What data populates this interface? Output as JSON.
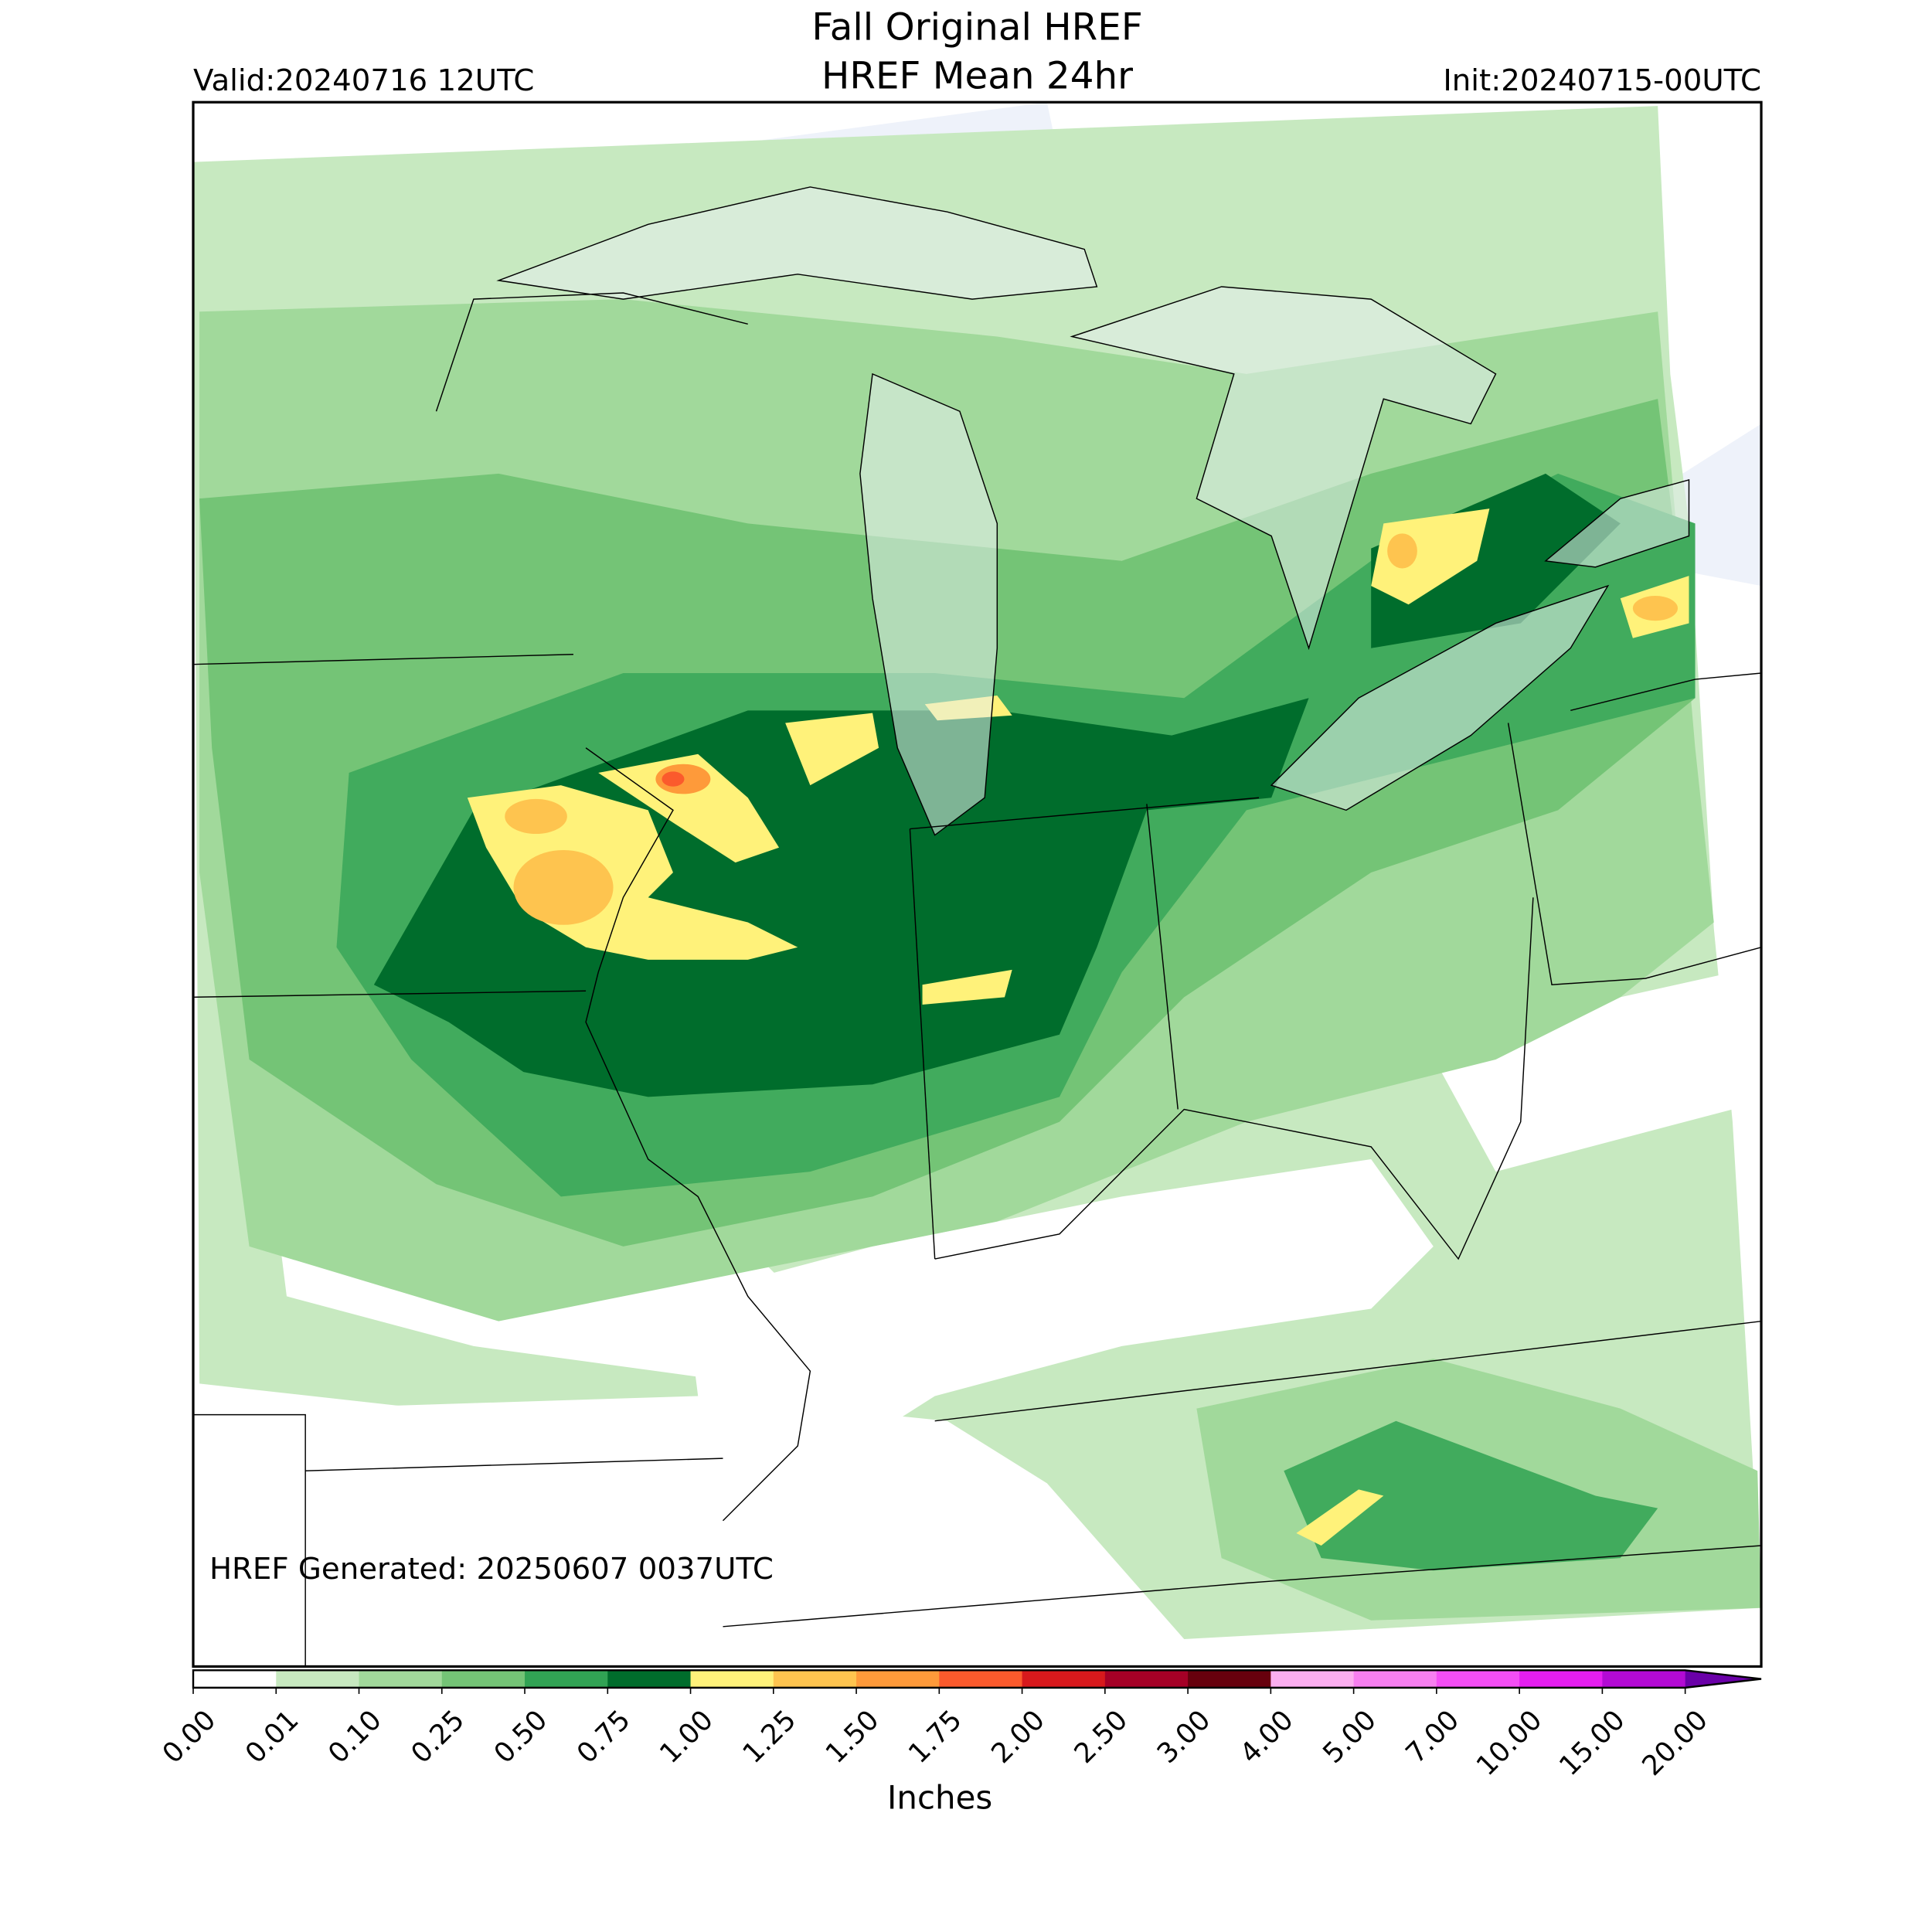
{
  "header": {
    "title": "Fall Original HREF",
    "subtitle": "HREF Mean 24hr",
    "valid": "Valid:20240716 12UTC",
    "init": "Init:20240715-00UTC"
  },
  "map": {
    "generated": "HREF Generated: 20250607 0037UTC"
  },
  "colorbar": {
    "label": "Inches",
    "ticks": [
      {
        "value": 0,
        "label": "0.00"
      },
      {
        "value": 0.01,
        "label": "0.01"
      },
      {
        "value": 0.1,
        "label": "0.10"
      },
      {
        "value": 0.25,
        "label": "0.25"
      },
      {
        "value": 0.5,
        "label": "0.50"
      },
      {
        "value": 0.75,
        "label": "0.75"
      },
      {
        "value": 1,
        "label": "1.00"
      },
      {
        "value": 1.25,
        "label": "1.25"
      },
      {
        "value": 1.5,
        "label": "1.50"
      },
      {
        "value": 1.75,
        "label": "1.75"
      },
      {
        "value": 2,
        "label": "2.00"
      },
      {
        "value": 2.5,
        "label": "2.50"
      },
      {
        "value": 3,
        "label": "3.00"
      },
      {
        "value": 4,
        "label": "4.00"
      },
      {
        "value": 5,
        "label": "5.00"
      },
      {
        "value": 7,
        "label": "7.00"
      },
      {
        "value": 10,
        "label": "10.00"
      },
      {
        "value": 15,
        "label": "15.00"
      },
      {
        "value": 20,
        "label": "20.00"
      }
    ],
    "colors": [
      "#ffffff",
      "#c7e9c0",
      "#a1d99b",
      "#74c476",
      "#31a354",
      "#006d2c",
      "#fff27a",
      "#fec44f",
      "#fe9a3a",
      "#fb5a2c",
      "#d7191c",
      "#a50026",
      "#67000d",
      "#fcaef0",
      "#f77ff0",
      "#f44ef5",
      "#e51ef0",
      "#b30ad4"
    ],
    "extend_color": "#6a00a8"
  }
}
